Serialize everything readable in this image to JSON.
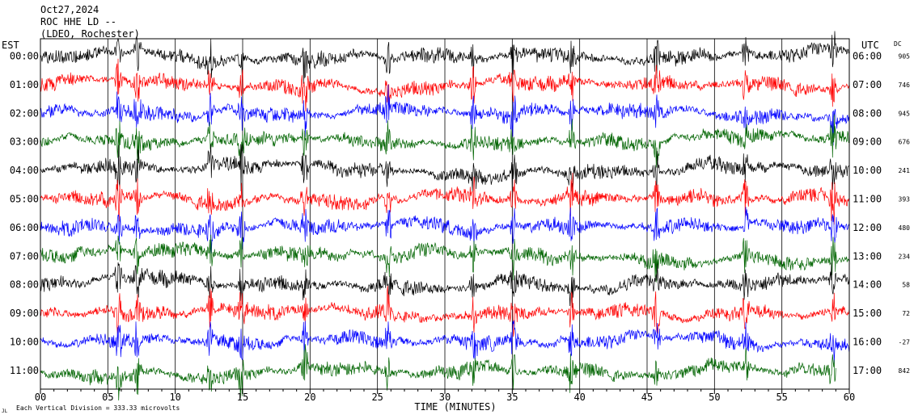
{
  "header": {
    "date": "Oct27,2024",
    "station": "ROC HHE LD --",
    "location": "(LDEO, Rochester)"
  },
  "left_axis_title": "EST",
  "right_axis_title": "UTC",
  "dc_title": "DC",
  "x_axis_title": "TIME (MINUTES)",
  "footer_note": "Each Vertical Division =  333.33 microvolts",
  "footer_mark": "JL",
  "colors": [
    "#000000",
    "#ff0000",
    "#0000ff",
    "#006400"
  ],
  "chart_data": {
    "type": "line",
    "title": "ROC HHE LD --",
    "subtitle": "Oct27,2024",
    "xlabel": "TIME (MINUTES)",
    "xlim": [
      0,
      60
    ],
    "x_ticks": [
      "00",
      "05",
      "10",
      "15",
      "20",
      "25",
      "30",
      "35",
      "40",
      "45",
      "50",
      "55",
      "60"
    ],
    "grid": "vertical lines every 5 minutes, minor ticks every minute",
    "series": [
      {
        "est": "00:00",
        "utc": "06:00",
        "dc": "905",
        "color": "black"
      },
      {
        "est": "01:00",
        "utc": "07:00",
        "dc": "746",
        "color": "red"
      },
      {
        "est": "02:00",
        "utc": "08:00",
        "dc": "945",
        "color": "blue"
      },
      {
        "est": "03:00",
        "utc": "09:00",
        "dc": "676",
        "color": "green"
      },
      {
        "est": "04:00",
        "utc": "10:00",
        "dc": "241",
        "color": "black"
      },
      {
        "est": "05:00",
        "utc": "11:00",
        "dc": "393",
        "color": "red"
      },
      {
        "est": "06:00",
        "utc": "12:00",
        "dc": "480",
        "color": "blue"
      },
      {
        "est": "07:00",
        "utc": "13:00",
        "dc": "234",
        "color": "green"
      },
      {
        "est": "08:00",
        "utc": "14:00",
        "dc": "58",
        "color": "black"
      },
      {
        "est": "09:00",
        "utc": "15:00",
        "dc": "72",
        "color": "red"
      },
      {
        "est": "10:00",
        "utc": "16:00",
        "dc": "-27",
        "color": "blue"
      },
      {
        "est": "11:00",
        "utc": "17:00",
        "dc": "842",
        "color": "green"
      }
    ],
    "last_trace_end_minute": 59
  }
}
